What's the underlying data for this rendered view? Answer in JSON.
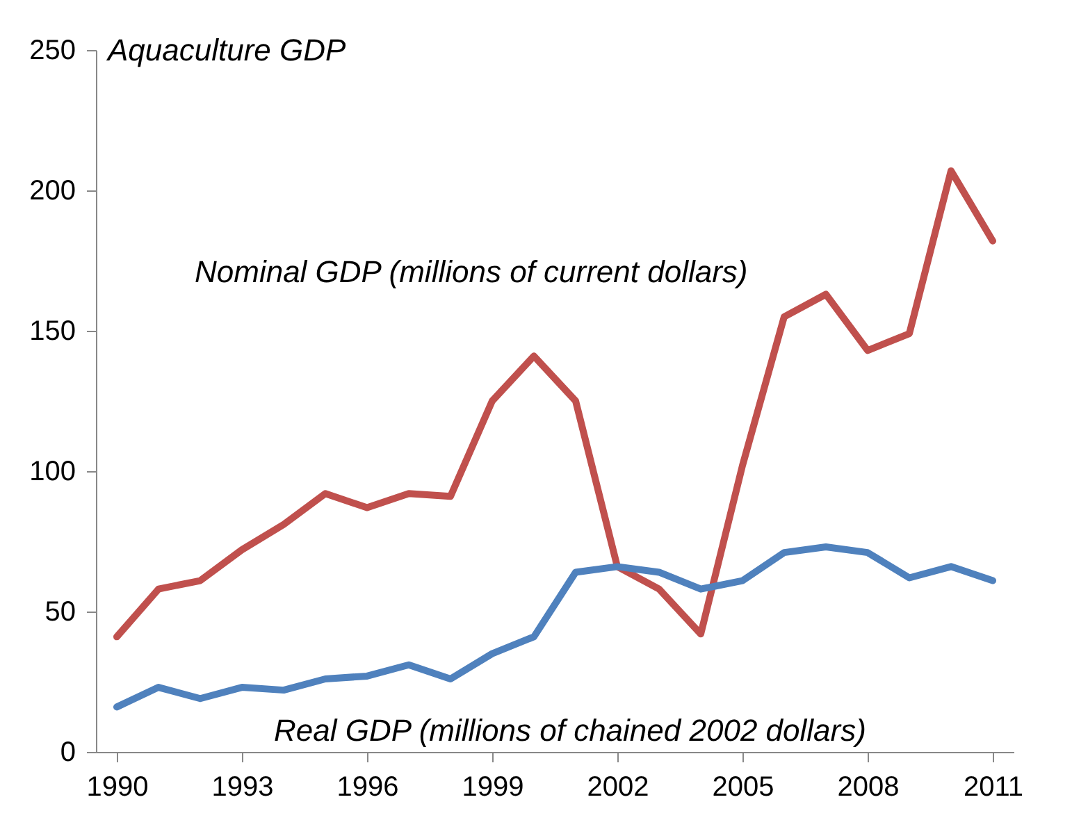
{
  "chart_data": {
    "type": "line",
    "ylabel": "Aquaculture GDP",
    "x": [
      1990,
      1991,
      1992,
      1993,
      1994,
      1995,
      1996,
      1997,
      1998,
      1999,
      2000,
      2001,
      2002,
      2003,
      2004,
      2005,
      2006,
      2007,
      2008,
      2009,
      2010,
      2011
    ],
    "series": [
      {
        "name": "Nominal GDP (millions of current dollars)",
        "color": "#c0504d",
        "values": [
          41,
          58,
          61,
          72,
          81,
          92,
          87,
          92,
          91,
          125,
          141,
          125,
          66,
          58,
          42,
          102,
          155,
          163,
          143,
          149,
          207,
          182
        ]
      },
      {
        "name": "Real GDP (millions of chained 2002 dollars)",
        "color": "#4f81bd",
        "values": [
          16,
          23,
          19,
          23,
          22,
          26,
          27,
          31,
          26,
          35,
          41,
          64,
          66,
          64,
          58,
          61,
          71,
          73,
          71,
          62,
          66,
          61
        ]
      }
    ],
    "xlim": [
      1989.5,
      2011.5
    ],
    "xticks": [
      1990,
      1993,
      1996,
      1999,
      2002,
      2005,
      2008,
      2011
    ],
    "ylim": [
      0,
      250
    ],
    "yticks": [
      0,
      50,
      100,
      150,
      200,
      250
    ],
    "grid": false,
    "legend": false,
    "marker": "none",
    "line_style": "solid"
  }
}
